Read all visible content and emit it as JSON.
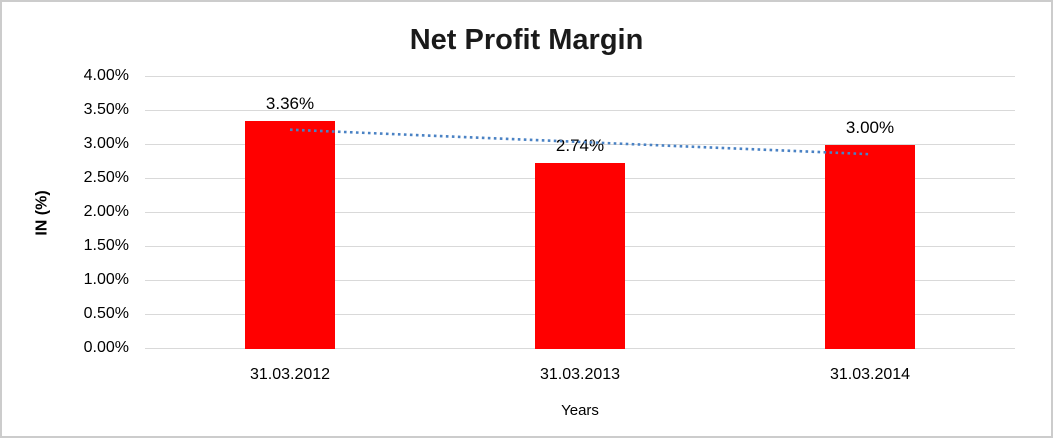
{
  "chart_data": {
    "type": "bar",
    "title": "Net Profit Margin",
    "xlabel": "Years",
    "ylabel": "IN (%)",
    "categories": [
      "31.03.2012",
      "31.03.2013",
      "31.03.2014"
    ],
    "values": [
      3.36,
      2.74,
      3.0
    ],
    "data_labels": [
      "3.36%",
      "2.74%",
      "3.00%"
    ],
    "ytick_labels": [
      "4.00%",
      "3.50%",
      "3.00%",
      "2.50%",
      "2.00%",
      "1.50%",
      "1.00%",
      "0.50%",
      "0.00%"
    ],
    "ylim": [
      0,
      4
    ],
    "ytick_step": 0.5,
    "grid": "horizontal",
    "legend": "none",
    "bar_color": "#ff0000",
    "gridline_color": "#d9d9d9",
    "trendline": {
      "type": "linear",
      "style": "dotted",
      "color": "#4a82c4",
      "start_value": 3.21,
      "end_value": 2.85
    }
  }
}
